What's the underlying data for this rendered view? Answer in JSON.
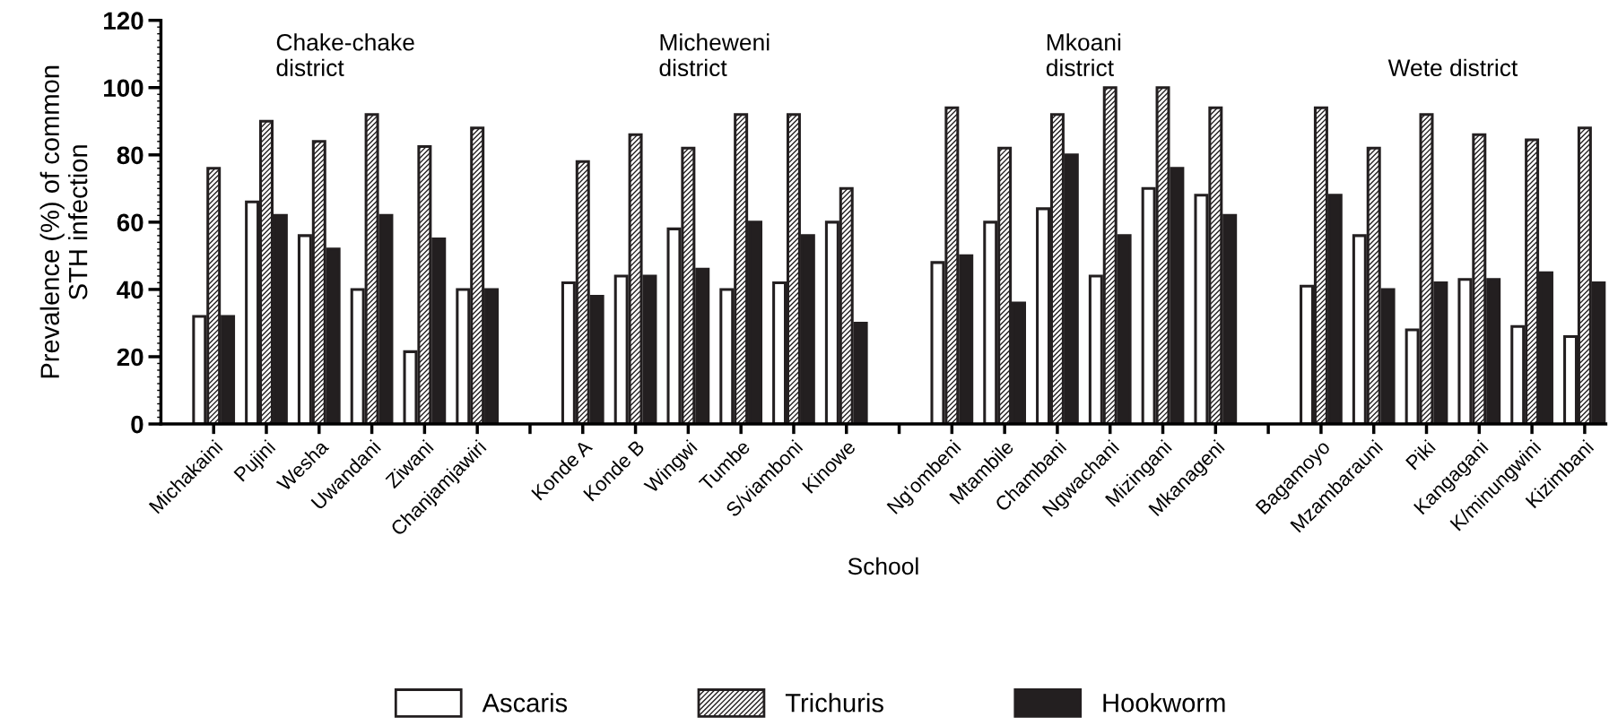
{
  "chart_data": {
    "type": "bar",
    "xlabel": "School",
    "ylabel": "Prevalence (%) of common\nSTH infection",
    "categories": [
      "Michakaini",
      "Pujini",
      "Wesha",
      "Uwandani",
      "Ziwani",
      "Chanjamjawiri",
      null,
      "Konde A",
      "Konde B",
      "Wingwi",
      "Tumbe",
      "S/viamboni",
      "Kinowe",
      null,
      "Ng'ombeni",
      "Mtambile",
      "Chambani",
      "Ngwachani",
      "Mizingani",
      "Mkanageni",
      null,
      "Bagamoyo",
      "Mzambarauni",
      "Piki",
      "Kangagani",
      "K/minungwini",
      "Kizimbani"
    ],
    "series": [
      {
        "name": "Ascaris",
        "color": "#ffffff",
        "values": [
          32,
          66,
          56,
          40,
          21.5,
          40,
          null,
          42,
          44,
          58,
          40,
          42,
          60,
          null,
          48,
          60,
          64,
          44,
          70,
          68,
          null,
          41,
          56,
          28,
          43,
          29,
          26
        ]
      },
      {
        "name": "Trichuris",
        "color": "#231f20",
        "values": [
          76,
          90,
          84,
          92,
          82.5,
          88,
          null,
          78,
          86,
          82,
          92,
          92,
          70,
          null,
          94,
          82,
          92,
          100,
          100,
          94,
          null,
          94,
          82,
          92,
          86,
          84.5,
          88
        ]
      },
      {
        "name": "Hookworm",
        "color": "#231f20",
        "values": [
          32,
          62,
          52,
          62,
          55,
          40,
          null,
          38,
          44,
          46,
          60,
          56,
          30,
          null,
          50,
          36,
          80,
          56,
          76,
          62,
          null,
          68,
          40,
          42,
          43,
          45,
          42
        ]
      }
    ],
    "ylim": [
      0,
      120
    ],
    "yticks": [
      0,
      20,
      40,
      60,
      80,
      100,
      120
    ],
    "grid": false,
    "legend": "bottom",
    "annotations": [
      "Chake-chake\ndistrict",
      "Micheweni\ndistrict",
      "Mkoani\ndistrict",
      "Wete district"
    ]
  }
}
